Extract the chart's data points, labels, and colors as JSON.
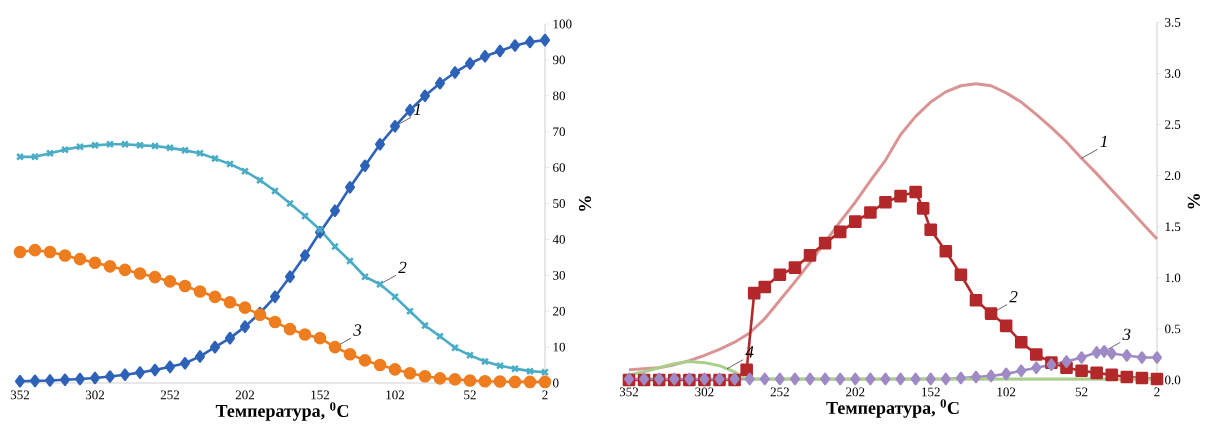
{
  "chart_data": [
    {
      "type": "line",
      "xlabel": "Температура, $^{0}$C",
      "ylabel": "%",
      "xlim": [
        352,
        2
      ],
      "xticks": [
        352,
        302,
        252,
        202,
        152,
        102,
        52,
        2
      ],
      "ylim": [
        0,
        100
      ],
      "yticks": [
        0,
        10,
        20,
        30,
        40,
        50,
        60,
        70,
        80,
        90,
        100
      ],
      "grid": false,
      "line_style": "solid",
      "x": [
        352,
        342,
        332,
        322,
        312,
        302,
        292,
        282,
        272,
        262,
        252,
        242,
        232,
        222,
        212,
        202,
        192,
        182,
        172,
        162,
        152,
        142,
        132,
        122,
        112,
        102,
        92,
        82,
        72,
        62,
        52,
        42,
        32,
        22,
        12,
        2
      ],
      "series": [
        {
          "color": "#2e62b8",
          "marker": "diamond",
          "values": [
            0.5,
            0.6,
            0.7,
            0.9,
            1.1,
            1.4,
            1.8,
            2.3,
            2.9,
            3.6,
            4.5,
            5.5,
            7.4,
            10,
            12.5,
            15.7,
            19.5,
            24,
            29.6,
            35.5,
            42,
            48,
            54.5,
            60.5,
            66.5,
            71.5,
            76,
            80,
            83.5,
            86.5,
            89,
            91,
            92.5,
            94,
            95,
            95.5
          ]
        },
        {
          "color": "#4bacc6",
          "marker": "cross",
          "values": [
            63,
            63,
            64,
            65,
            65.8,
            66.2,
            66.5,
            66.5,
            66.2,
            66,
            65.5,
            64.8,
            64,
            62.5,
            61,
            59,
            56.5,
            53.5,
            50,
            46.5,
            42.7,
            38,
            34,
            29.6,
            27.5,
            24,
            20,
            16,
            13,
            9.8,
            7.7,
            6,
            4.8,
            4,
            3.3,
            3
          ]
        },
        {
          "color": "#ed7d1f",
          "marker": "circle",
          "values": [
            36.5,
            37,
            36.5,
            35.5,
            34.5,
            33.5,
            32.5,
            31.5,
            30.5,
            29.5,
            28.3,
            27,
            25.5,
            24,
            22.5,
            21,
            19,
            17,
            15,
            13.5,
            12.5,
            10,
            8,
            6.3,
            5,
            3.8,
            2.7,
            1.9,
            1.3,
            1,
            0.7,
            0.5,
            0.4,
            0.3,
            0.3,
            0.3
          ]
        }
      ],
      "annotations": [
        {
          "text": "1",
          "x": 102,
          "y": 71.5
        },
        {
          "text": "2",
          "x": 112,
          "y": 27.5
        },
        {
          "text": "3",
          "x": 142,
          "y": 10
        }
      ]
    },
    {
      "type": "line",
      "xlabel": "Температура, $^{0}$C",
      "ylabel": "%",
      "xlim": [
        352,
        2
      ],
      "xticks": [
        352,
        302,
        252,
        202,
        152,
        102,
        52,
        2
      ],
      "ylim": [
        0,
        3.5
      ],
      "yticks": [
        {
          "value": 0,
          "label": "0.0"
        },
        {
          "value": 0.5,
          "label": "0.5"
        },
        {
          "value": 1,
          "label": "1.0"
        },
        {
          "value": 1.5,
          "label": "1.5"
        },
        {
          "value": 2,
          "label": "2.0"
        },
        {
          "value": 2.5,
          "label": "2.5"
        },
        {
          "value": 3,
          "label": "3.0"
        },
        {
          "value": 3.5,
          "label": "3.5"
        }
      ],
      "grid": false,
      "line_style": "solid",
      "x": [
        352,
        342,
        332,
        322,
        312,
        302,
        292,
        282,
        272,
        262,
        252,
        242,
        232,
        222,
        212,
        202,
        192,
        182,
        172,
        162,
        152,
        142,
        132,
        122,
        112,
        102,
        92,
        82,
        72,
        62,
        52,
        42,
        32,
        22,
        12,
        2
      ],
      "series": [
        {
          "color": "#d99594",
          "marker": "none",
          "values": [
            0.1,
            0.11,
            0.12,
            0.15,
            0.19,
            0.24,
            0.3,
            0.37,
            0.46,
            0.6,
            0.78,
            0.96,
            1.15,
            1.35,
            1.55,
            1.74,
            1.95,
            2.15,
            2.4,
            2.58,
            2.72,
            2.82,
            2.88,
            2.9,
            2.88,
            2.81,
            2.72,
            2.6,
            2.47,
            2.33,
            2.17,
            2.02,
            1.86,
            1.7,
            1.54,
            1.38
          ]
        },
        {
          "color": "#b3282a",
          "marker": "square",
          "x": [
            352,
            342,
            332,
            322,
            312,
            302,
            292,
            282,
            274,
            269,
            262,
            252,
            242,
            232,
            222,
            212,
            202,
            192,
            182,
            172,
            162,
            157,
            152,
            142,
            132,
            122,
            112,
            102,
            92,
            82,
            72,
            62,
            52,
            42,
            32,
            22,
            12,
            2
          ],
          "values": [
            0,
            0,
            0,
            0,
            0,
            0,
            0,
            0,
            0.1,
            0.85,
            0.91,
            1.03,
            1.1,
            1.22,
            1.34,
            1.45,
            1.55,
            1.64,
            1.74,
            1.8,
            1.84,
            1.68,
            1.47,
            1.26,
            1.03,
            0.78,
            0.65,
            0.53,
            0.37,
            0.25,
            0.17,
            0.12,
            0.09,
            0.07,
            0.05,
            0.03,
            0.02,
            0.01
          ]
        },
        {
          "color": "#9f8ac6",
          "marker": "diamond",
          "x": [
            352,
            342,
            332,
            322,
            312,
            302,
            292,
            282,
            272,
            262,
            252,
            242,
            232,
            222,
            212,
            202,
            192,
            182,
            172,
            162,
            152,
            142,
            132,
            122,
            112,
            102,
            92,
            82,
            72,
            62,
            52,
            42,
            37,
            32,
            22,
            12,
            2
          ],
          "values": [
            0.01,
            0.01,
            0.01,
            0.01,
            0.01,
            0.01,
            0.01,
            0.01,
            0.01,
            0.01,
            0.01,
            0.01,
            0.01,
            0.01,
            0.01,
            0.01,
            0.01,
            0.01,
            0.01,
            0.01,
            0.01,
            0.01,
            0.02,
            0.03,
            0.04,
            0.06,
            0.09,
            0.12,
            0.15,
            0.18,
            0.22,
            0.27,
            0.28,
            0.26,
            0.24,
            0.22,
            0.22
          ]
        },
        {
          "color": "#a9cf8a",
          "marker": "none",
          "x": [
            352,
            342,
            332,
            322,
            312,
            302,
            292,
            282,
            277,
            272,
            202,
            102,
            2
          ],
          "values": [
            0.05,
            0.08,
            0.12,
            0.16,
            0.18,
            0.17,
            0.14,
            0.08,
            0.03,
            0.01,
            0.01,
            0.01,
            0.01
          ]
        }
      ],
      "annotations": [
        {
          "text": "1",
          "x": 52,
          "y": 2.17
        },
        {
          "text": "2",
          "x": 112,
          "y": 0.65
        },
        {
          "text": "3",
          "x": 37,
          "y": 0.28
        },
        {
          "text": "4",
          "x": 287,
          "y": 0.11
        }
      ]
    }
  ]
}
